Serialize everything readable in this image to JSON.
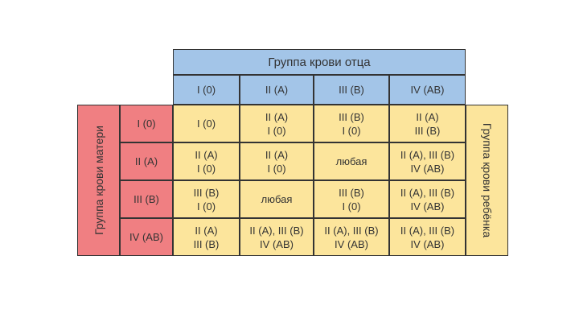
{
  "father_header": "Группа крови отца",
  "mother_label": "Группа крови матери",
  "child_label": "Группа крови ребёнка",
  "father_groups": [
    "I (0)",
    "II (A)",
    "III (B)",
    "IV (AB)"
  ],
  "rows": [
    {
      "mother": "I (0)",
      "cells": [
        [
          "I (0)"
        ],
        [
          "II (A)",
          "I (0)"
        ],
        [
          "III (B)",
          "I (0)"
        ],
        [
          "II (A)",
          "III (B)"
        ]
      ]
    },
    {
      "mother": "II (A)",
      "cells": [
        [
          "II (A)",
          "I (0)"
        ],
        [
          "II (A)",
          "I (0)"
        ],
        [
          "любая"
        ],
        [
          "II (A), III (B)",
          "IV (AB)"
        ]
      ]
    },
    {
      "mother": "III (B)",
      "cells": [
        [
          "III (B)",
          "I (0)"
        ],
        [
          "любая"
        ],
        [
          "III (B)",
          "I (0)"
        ],
        [
          "II (A), III (B)",
          "IV (AB)"
        ]
      ]
    },
    {
      "mother": "IV (AB)",
      "cells": [
        [
          "II (A)",
          "III (B)"
        ],
        [
          "II (A), III (B)",
          "IV (AB)"
        ],
        [
          "II (A), III (B)",
          "IV (AB)"
        ],
        [
          "II (A), III (B)",
          "IV (AB)"
        ]
      ]
    }
  ],
  "colors": {
    "father": "#a3c5e8",
    "mother": "#f07f82",
    "child": "#fce59c"
  }
}
